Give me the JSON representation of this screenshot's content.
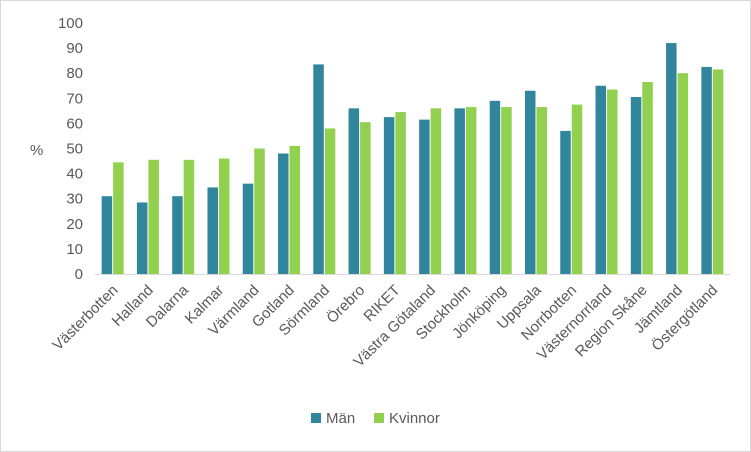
{
  "chart_data": {
    "type": "bar",
    "title": "",
    "xlabel": "",
    "ylabel": "%",
    "ylim": [
      0,
      100
    ],
    "yticks": [
      0,
      10,
      20,
      30,
      40,
      50,
      60,
      70,
      80,
      90,
      100
    ],
    "grid": false,
    "legend": "bottom",
    "categories": [
      "Västerbotten",
      "Halland",
      "Dalarna",
      "Kalmar",
      "Värmland",
      "Gotland",
      "Sörmland",
      "Örebro",
      "RIKET",
      "Västra Götaland",
      "Stockholm",
      "Jönköping",
      "Uppsala",
      "Norrbotten",
      "Västernorrland",
      "Region Skåne",
      "Jämtland",
      "Östergötland"
    ],
    "series": [
      {
        "name": "Män",
        "color": "#31859c",
        "values": [
          31,
          28.5,
          31,
          34.5,
          36,
          48,
          83.5,
          66,
          62.5,
          61.5,
          66,
          69,
          73,
          57,
          75,
          70.5,
          92,
          82.5
        ]
      },
      {
        "name": "Kvinnor",
        "color": "#92d050",
        "values": [
          44.5,
          45.5,
          45.5,
          46,
          50,
          51,
          58,
          60.5,
          64.5,
          66,
          66.5,
          66.5,
          66.5,
          67.5,
          73.5,
          76.5,
          80,
          81.5
        ]
      }
    ]
  }
}
